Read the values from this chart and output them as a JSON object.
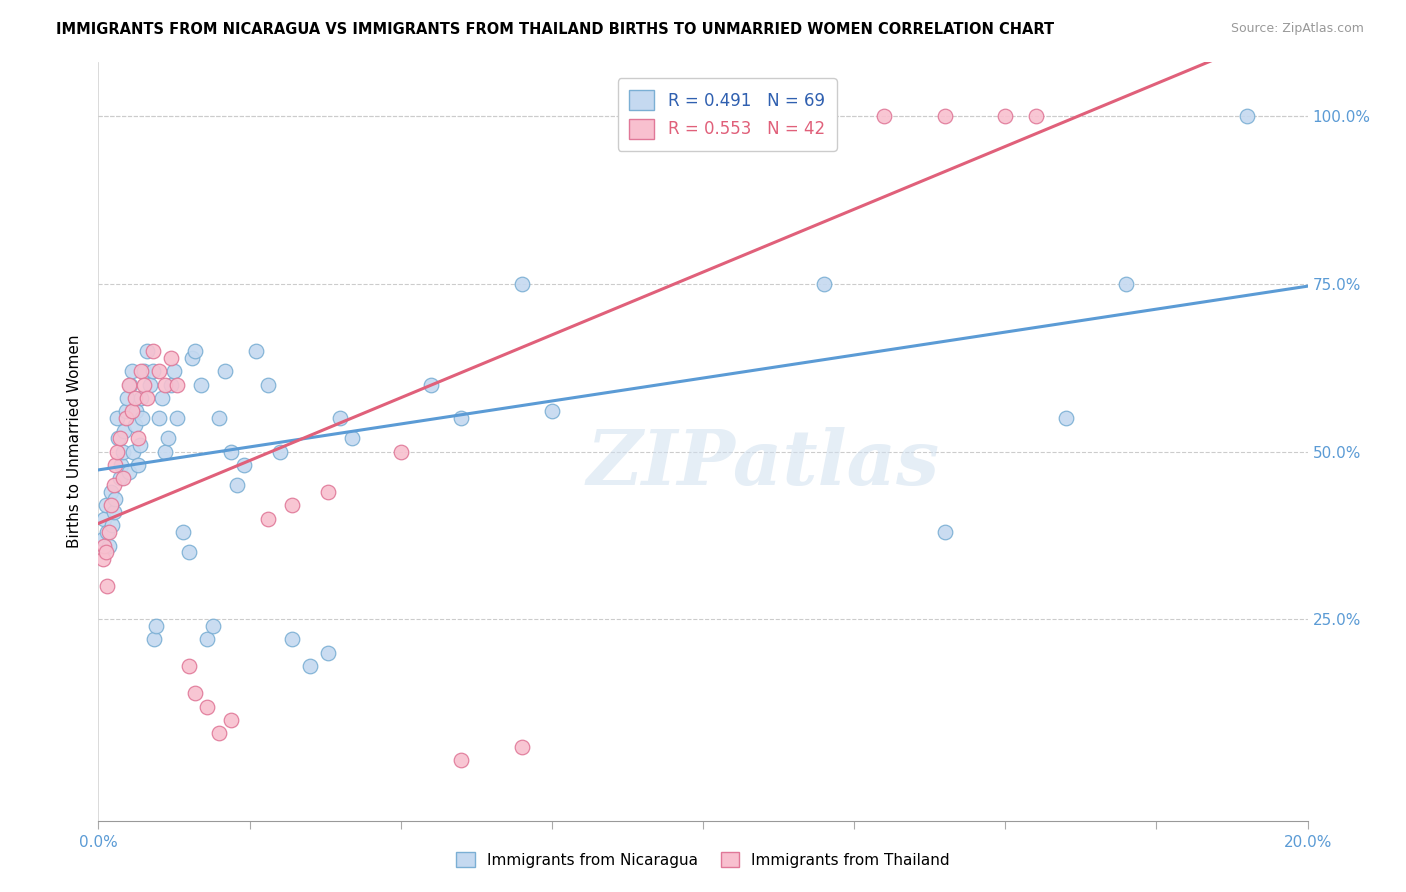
{
  "title": "IMMIGRANTS FROM NICARAGUA VS IMMIGRANTS FROM THAILAND BIRTHS TO UNMARRIED WOMEN CORRELATION CHART",
  "source": "Source: ZipAtlas.com",
  "ylabel": "Births to Unmarried Women",
  "xmin": 0.0,
  "xmax": 0.2,
  "ymin": -0.05,
  "ymax": 1.08,
  "nicaragua_fill": "#c5d9f0",
  "nicaragua_edge": "#7bafd4",
  "thailand_fill": "#f8c0cf",
  "thailand_edge": "#e07898",
  "trend_nicaragua": "#5b9bd5",
  "trend_thailand": "#e0607a",
  "legend_text1": "R = 0.491  N = 69",
  "legend_text2": "R = 0.553  N = 42",
  "watermark": "ZIPatlas",
  "nicaragua_x": [
    0.0008,
    0.001,
    0.0012,
    0.0015,
    0.0018,
    0.002,
    0.0022,
    0.0025,
    0.0028,
    0.003,
    0.0032,
    0.0035,
    0.0038,
    0.004,
    0.0042,
    0.0045,
    0.0048,
    0.005,
    0.0052,
    0.0055,
    0.0058,
    0.006,
    0.0062,
    0.0065,
    0.0068,
    0.007,
    0.0072,
    0.0075,
    0.008,
    0.0085,
    0.009,
    0.0092,
    0.0095,
    0.01,
    0.0105,
    0.011,
    0.0115,
    0.012,
    0.0125,
    0.013,
    0.014,
    0.015,
    0.0155,
    0.016,
    0.017,
    0.018,
    0.019,
    0.02,
    0.021,
    0.022,
    0.023,
    0.024,
    0.026,
    0.028,
    0.03,
    0.032,
    0.035,
    0.038,
    0.04,
    0.042,
    0.055,
    0.06,
    0.07,
    0.075,
    0.12,
    0.14,
    0.16,
    0.17,
    0.19
  ],
  "nicaragua_y": [
    0.37,
    0.4,
    0.42,
    0.38,
    0.36,
    0.44,
    0.39,
    0.41,
    0.43,
    0.55,
    0.52,
    0.46,
    0.48,
    0.5,
    0.53,
    0.56,
    0.58,
    0.47,
    0.6,
    0.62,
    0.5,
    0.54,
    0.56,
    0.48,
    0.51,
    0.58,
    0.55,
    0.62,
    0.65,
    0.6,
    0.62,
    0.22,
    0.24,
    0.55,
    0.58,
    0.5,
    0.52,
    0.6,
    0.62,
    0.55,
    0.38,
    0.35,
    0.64,
    0.65,
    0.6,
    0.22,
    0.24,
    0.55,
    0.62,
    0.5,
    0.45,
    0.48,
    0.65,
    0.6,
    0.5,
    0.22,
    0.18,
    0.2,
    0.55,
    0.52,
    0.6,
    0.55,
    0.75,
    0.56,
    0.75,
    0.38,
    0.55,
    0.75,
    1.0
  ],
  "thailand_x": [
    0.0008,
    0.001,
    0.0012,
    0.0015,
    0.0018,
    0.002,
    0.0025,
    0.0028,
    0.003,
    0.0035,
    0.004,
    0.0045,
    0.005,
    0.0055,
    0.006,
    0.0065,
    0.007,
    0.0075,
    0.008,
    0.009,
    0.01,
    0.011,
    0.012,
    0.013,
    0.015,
    0.016,
    0.018,
    0.02,
    0.022,
    0.028,
    0.032,
    0.038,
    0.05,
    0.06,
    0.07,
    0.1,
    0.11,
    0.12,
    0.13,
    0.14,
    0.15,
    0.155
  ],
  "thailand_y": [
    0.34,
    0.36,
    0.35,
    0.3,
    0.38,
    0.42,
    0.45,
    0.48,
    0.5,
    0.52,
    0.46,
    0.55,
    0.6,
    0.56,
    0.58,
    0.52,
    0.62,
    0.6,
    0.58,
    0.65,
    0.62,
    0.6,
    0.64,
    0.6,
    0.18,
    0.14,
    0.12,
    0.08,
    0.1,
    0.4,
    0.42,
    0.44,
    0.5,
    0.04,
    0.06,
    1.0,
    1.0,
    1.0,
    1.0,
    1.0,
    1.0,
    1.0
  ]
}
